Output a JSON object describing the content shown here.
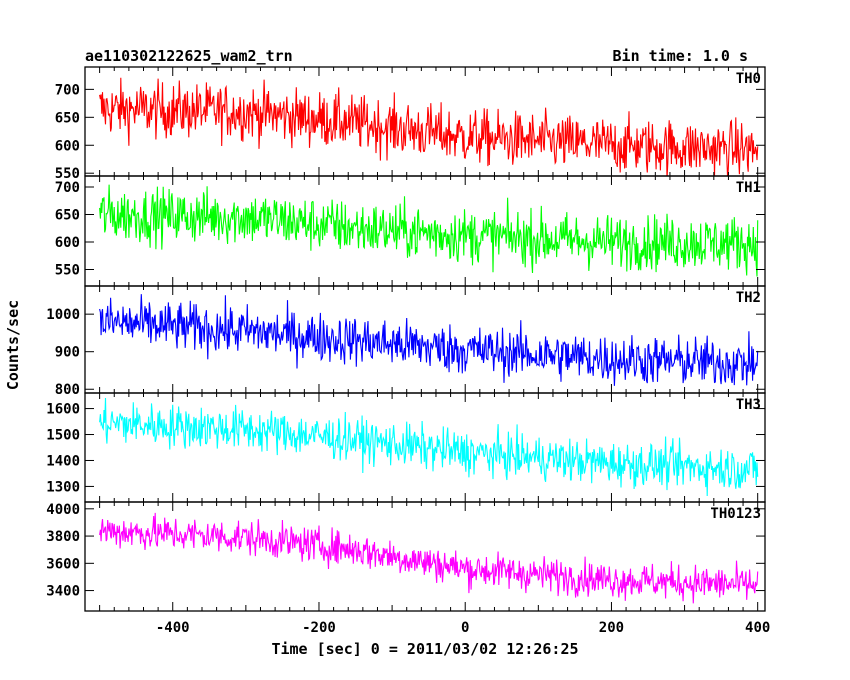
{
  "header": {
    "title": "ae110302122625_wam2_trn",
    "bin_time": "Bin time: 1.0 s"
  },
  "chart_data": {
    "type": "line",
    "xlabel": "Time [sec] 0 = 2011/03/02 12:26:25",
    "ylabel": "Counts/sec",
    "xlim": [
      -520,
      410
    ],
    "xticks": [
      -400,
      -200,
      0,
      200,
      400
    ],
    "x_range_data": [
      -500,
      400
    ],
    "panels": [
      {
        "name": "TH0",
        "color": "#ff0000",
        "ylim": [
          545,
          740
        ],
        "yticks": [
          550,
          600,
          650,
          700
        ],
        "trend": [
          [
            -500,
            665
          ],
          [
            -300,
            660
          ],
          [
            -150,
            640
          ],
          [
            0,
            615
          ],
          [
            200,
            600
          ],
          [
            400,
            592
          ]
        ],
        "noise_sigma": 25
      },
      {
        "name": "TH1",
        "color": "#00ff00",
        "ylim": [
          520,
          720
        ],
        "yticks": [
          550,
          600,
          650,
          700
        ],
        "trend": [
          [
            -500,
            650
          ],
          [
            -300,
            645
          ],
          [
            -150,
            625
          ],
          [
            0,
            612
          ],
          [
            200,
            600
          ],
          [
            400,
            598
          ]
        ],
        "noise_sigma": 25
      },
      {
        "name": "TH2",
        "color": "#0000ff",
        "ylim": [
          790,
          1075
        ],
        "yticks": [
          800,
          900,
          1000
        ],
        "trend": [
          [
            -500,
            980
          ],
          [
            -300,
            955
          ],
          [
            -150,
            930
          ],
          [
            0,
            905
          ],
          [
            200,
            880
          ],
          [
            400,
            868
          ]
        ],
        "noise_sigma": 33
      },
      {
        "name": "TH3",
        "color": "#00ffff",
        "ylim": [
          1240,
          1660
        ],
        "yticks": [
          1300,
          1400,
          1500,
          1600
        ],
        "trend": [
          [
            -500,
            1545
          ],
          [
            -300,
            1520
          ],
          [
            -150,
            1480
          ],
          [
            0,
            1430
          ],
          [
            200,
            1390
          ],
          [
            400,
            1365
          ]
        ],
        "noise_sigma": 42
      },
      {
        "name": "TH0123",
        "color": "#ff00ff",
        "ylim": [
          3250,
          4050
        ],
        "yticks": [
          3400,
          3600,
          3800,
          4000
        ],
        "trend": [
          [
            -500,
            3840
          ],
          [
            -300,
            3790
          ],
          [
            -150,
            3700
          ],
          [
            0,
            3560
          ],
          [
            200,
            3480
          ],
          [
            400,
            3440
          ]
        ],
        "noise_sigma": 65
      }
    ]
  }
}
